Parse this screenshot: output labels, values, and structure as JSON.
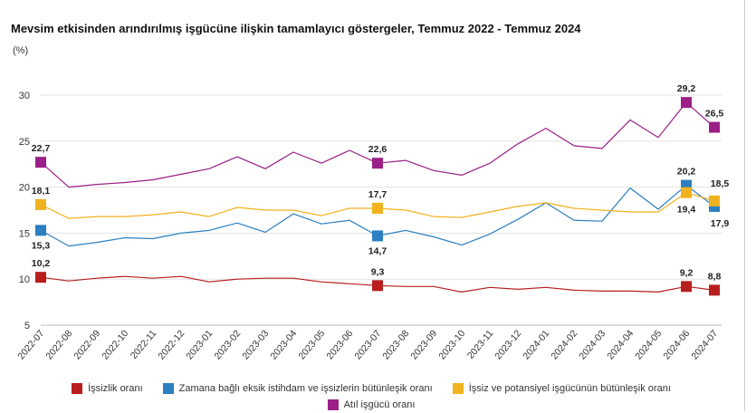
{
  "title": "Mevsim etkisinden arındırılmış işgücüne ilişkin tamamlayıcı göstergeler, Temmuz 2022 - Temmuz 2024",
  "unit_label": "(%)",
  "chart_data": {
    "type": "line",
    "title": "Mevsim etkisinden arındırılmış işgücüne ilişkin tamamlayıcı göstergeler, Temmuz 2022 - Temmuz 2024",
    "ylabel": "(%)",
    "ylim": [
      5,
      30
    ],
    "yticks": [
      "30",
      "25",
      "20",
      "15",
      "10",
      "5"
    ],
    "grid": true,
    "legend_position": "bottom",
    "categories": [
      "2022-07",
      "2022-08",
      "2022-09",
      "2022-10",
      "2022-11",
      "2022-12",
      "2023-01",
      "2023-02",
      "2023-03",
      "2023-04",
      "2023-05",
      "2023-06",
      "2023-07",
      "2023-08",
      "2023-09",
      "2023-10",
      "2023-11",
      "2023-12",
      "2024-01",
      "2024-02",
      "2024-03",
      "2024-04",
      "2024-05",
      "2024-06",
      "2024-07"
    ],
    "marked_indices": [
      0,
      12,
      23,
      24
    ],
    "series": [
      {
        "name": "İşsizlik oranı",
        "color": "#b81e1e",
        "values": [
          10.2,
          9.8,
          10.1,
          10.3,
          10.1,
          10.3,
          9.7,
          10.0,
          10.1,
          10.1,
          9.7,
          9.5,
          9.3,
          9.2,
          9.2,
          8.6,
          9.1,
          8.9,
          9.1,
          8.8,
          8.7,
          8.7,
          8.6,
          9.2,
          8.8
        ],
        "labels": [
          "10,2",
          "9,3",
          "9,2",
          "8,8"
        ]
      },
      {
        "name": "Zamana bağlı eksik istihdam ve işsizlerin bütünleşik oranı",
        "color": "#2c7fc0",
        "values": [
          15.3,
          13.6,
          14.0,
          14.5,
          14.4,
          15.0,
          15.3,
          16.1,
          15.1,
          17.1,
          16.0,
          16.4,
          14.7,
          15.3,
          14.6,
          13.7,
          14.9,
          16.5,
          18.3,
          16.4,
          16.3,
          19.9,
          17.6,
          20.2,
          17.9
        ],
        "labels": [
          "15,3",
          "14,7",
          "20,2",
          "17,9"
        ]
      },
      {
        "name": "İşsiz ve potansiyel işgücünün bütünleşik oranı",
        "color": "#f0b21e",
        "values": [
          18.1,
          16.6,
          16.8,
          16.8,
          17.0,
          17.3,
          16.8,
          17.8,
          17.5,
          17.5,
          16.9,
          17.7,
          17.7,
          17.5,
          16.8,
          16.7,
          17.3,
          17.9,
          18.3,
          17.7,
          17.5,
          17.3,
          17.3,
          19.4,
          18.5
        ],
        "labels": [
          "18,1",
          "17,7",
          "19,4",
          "18,5"
        ]
      },
      {
        "name": "Atıl işgücü oranı",
        "color": "#9b1f86",
        "values": [
          22.7,
          20.0,
          20.3,
          20.5,
          20.8,
          21.4,
          22.0,
          23.3,
          22.0,
          23.8,
          22.6,
          24.0,
          22.6,
          22.9,
          21.8,
          21.3,
          22.6,
          24.7,
          26.4,
          24.5,
          24.2,
          27.3,
          25.4,
          29.2,
          26.5
        ],
        "labels": [
          "22,7",
          "22,6",
          "29,2",
          "26,5"
        ]
      }
    ]
  }
}
